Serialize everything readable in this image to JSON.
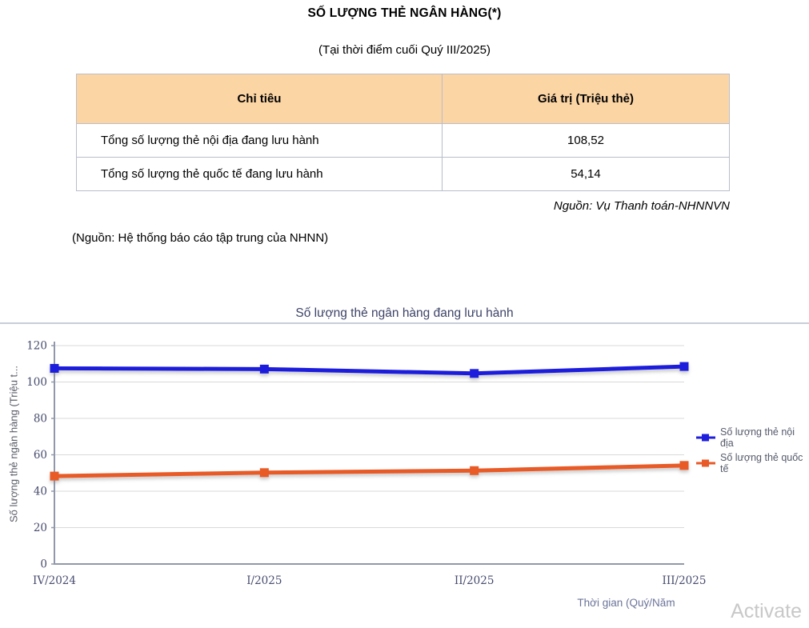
{
  "page": {
    "title": "SỐ LƯỢNG THẺ NGÂN HÀNG(*)",
    "subtitle": "(Tại thời điểm cuối Quý III/2025)",
    "source_right": "Nguồn: Vụ Thanh toán-NHNNVN",
    "source_left": "(Nguồn: Hệ thống báo cáo tập trung của NHNN)",
    "watermark": "Activate"
  },
  "table": {
    "headers": [
      "Chỉ tiêu",
      "Giá trị (Triệu thẻ)"
    ],
    "rows": [
      {
        "label": "Tổng số lượng thẻ nội địa đang lưu hành",
        "value": "108,52"
      },
      {
        "label": "Tổng số lượng thẻ quốc tế đang lưu hành",
        "value": "54,14"
      }
    ]
  },
  "colors": {
    "table_header_bg": "#FCD5A4",
    "table_border": "#B9BDCB",
    "gridline": "#D9D9D9",
    "axis_line": "#9098AB",
    "chart_text": "#474C6E",
    "watermark": "#C8C8C8"
  },
  "chart_data": {
    "type": "line",
    "title": "Số lượng thẻ ngân hàng đang lưu hành",
    "categories": [
      "IV/2024",
      "I/2025",
      "II/2025",
      "III/2025"
    ],
    "series": [
      {
        "name": "Số lượng thẻ nội địa",
        "color": "#1F1FDC",
        "values": [
          107.5,
          107.1,
          104.7,
          108.52
        ]
      },
      {
        "name": "Số lượng thẻ quốc tế",
        "color": "#E85A28",
        "values": [
          48.3,
          50.2,
          51.3,
          54.14
        ]
      }
    ],
    "xlabel": "Thời gian (Quý/Năm",
    "ylabel": "Số lượng thẻ ngân hàng (Triệu t...",
    "ylim": [
      0,
      120
    ],
    "ytick_step": 20,
    "grid": true,
    "legend_position": "right"
  }
}
